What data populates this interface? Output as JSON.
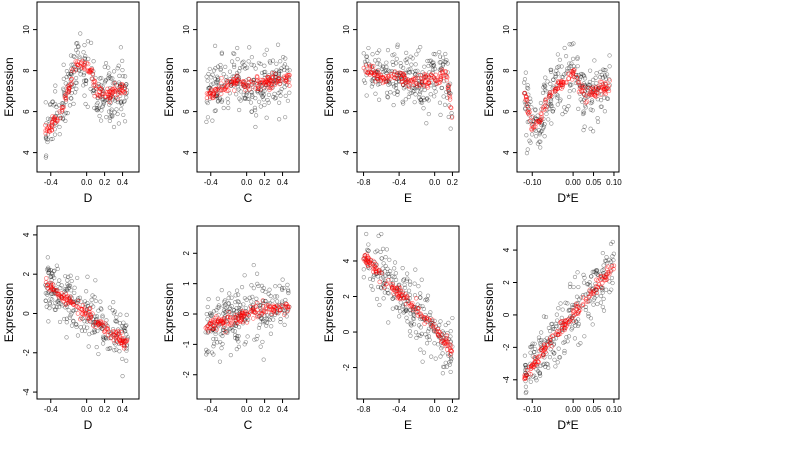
{
  "chart_data": [
    {
      "type": "scatter",
      "xlabel": "D",
      "ylabel": "Expression",
      "xticks": [
        "-0.4",
        "0.0",
        "0.2",
        "0.4"
      ],
      "xtick_values": [
        -0.4,
        0.0,
        0.2,
        0.4
      ],
      "yticks": [
        "4",
        "6",
        "8",
        "10"
      ],
      "ytick_values": [
        4,
        6,
        8,
        10
      ],
      "xlim": [
        -0.52,
        0.55
      ],
      "ylim": [
        3.2,
        11.2
      ],
      "trend": [
        [
          -0.46,
          4.9
        ],
        [
          -0.4,
          5.3
        ],
        [
          -0.3,
          5.9
        ],
        [
          -0.2,
          7.0
        ],
        [
          -0.15,
          8.1
        ],
        [
          -0.1,
          8.3
        ],
        [
          0.0,
          8.1
        ],
        [
          0.05,
          8.0
        ],
        [
          0.1,
          7.0
        ],
        [
          0.2,
          6.8
        ],
        [
          0.3,
          6.9
        ],
        [
          0.45,
          7.2
        ]
      ]
    },
    {
      "type": "scatter",
      "xlabel": "C",
      "ylabel": "Expression",
      "xticks": [
        "-0.4",
        "0.0",
        "0.2",
        "0.4"
      ],
      "xtick_values": [
        -0.4,
        0.0,
        0.2,
        0.4
      ],
      "yticks": [
        "4",
        "6",
        "8",
        "10"
      ],
      "ytick_values": [
        4,
        6,
        8,
        10
      ],
      "xlim": [
        -0.52,
        0.55
      ],
      "ylim": [
        3.2,
        11.2
      ],
      "trend": [
        [
          -0.45,
          6.8
        ],
        [
          -0.3,
          7.1
        ],
        [
          -0.1,
          7.4
        ],
        [
          0.1,
          7.3
        ],
        [
          0.3,
          7.5
        ],
        [
          0.48,
          7.6
        ]
      ]
    },
    {
      "type": "scatter",
      "xlabel": "E",
      "ylabel": "Expression",
      "xticks": [
        "-0.8",
        "-0.4",
        "0.0",
        "0.2"
      ],
      "xtick_values": [
        -0.8,
        -0.4,
        0.0,
        0.2
      ],
      "yticks": [
        "4",
        "6",
        "8",
        "10"
      ],
      "ytick_values": [
        4,
        6,
        8,
        10
      ],
      "xlim": [
        -0.84,
        0.24
      ],
      "ylim": [
        3.2,
        11.2
      ],
      "trend": [
        [
          -0.8,
          8.2
        ],
        [
          -0.6,
          7.6
        ],
        [
          -0.45,
          7.7
        ],
        [
          -0.2,
          7.4
        ],
        [
          0.05,
          7.6
        ],
        [
          0.1,
          8.0
        ],
        [
          0.15,
          7.5
        ],
        [
          0.2,
          5.5
        ]
      ]
    },
    {
      "type": "scatter",
      "xlabel": "D*E",
      "ylabel": "Expression",
      "xticks": [
        "-0.10",
        "0.00",
        "0.05",
        "0.10"
      ],
      "xtick_values": [
        -0.1,
        0.0,
        0.05,
        0.1
      ],
      "yticks": [
        "4",
        "6",
        "8",
        "10"
      ],
      "ytick_values": [
        4,
        6,
        8,
        10
      ],
      "xlim": [
        -0.13,
        0.105
      ],
      "ylim": [
        3.2,
        11.2
      ],
      "trend": [
        [
          -0.12,
          7.0
        ],
        [
          -0.1,
          5.2
        ],
        [
          -0.08,
          5.7
        ],
        [
          -0.05,
          7.0
        ],
        [
          -0.02,
          7.5
        ],
        [
          0.0,
          8.0
        ],
        [
          0.03,
          6.8
        ],
        [
          0.06,
          7.0
        ],
        [
          0.09,
          7.2
        ]
      ]
    },
    {
      "type": "scatter",
      "xlabel": "D",
      "ylabel": "Expression",
      "xticks": [
        "-0.4",
        "0.0",
        "0.2",
        "0.4"
      ],
      "xtick_values": [
        -0.4,
        0.0,
        0.2,
        0.4
      ],
      "yticks": [
        "-4",
        "-2",
        "0",
        "2",
        "4"
      ],
      "ytick_values": [
        -4,
        -2,
        0,
        2,
        4
      ],
      "xlim": [
        -0.52,
        0.55
      ],
      "ylim": [
        -4.2,
        4.3
      ],
      "trend": [
        [
          -0.46,
          1.6
        ],
        [
          -0.3,
          0.9
        ],
        [
          -0.1,
          0.3
        ],
        [
          0.0,
          0.0
        ],
        [
          0.2,
          -0.8
        ],
        [
          0.46,
          -1.6
        ]
      ]
    },
    {
      "type": "scatter",
      "xlabel": "C",
      "ylabel": "Expression",
      "xticks": [
        "-0.4",
        "0.0",
        "0.2",
        "0.4"
      ],
      "xtick_values": [
        -0.4,
        0.0,
        0.2,
        0.4
      ],
      "yticks": [
        "-2",
        "-1",
        "0",
        "1",
        "2"
      ],
      "ytick_values": [
        -2,
        -1,
        0,
        1,
        2
      ],
      "xlim": [
        -0.52,
        0.55
      ],
      "ylim": [
        -2.7,
        2.8
      ],
      "trend": [
        [
          -0.46,
          -0.4
        ],
        [
          -0.2,
          -0.2
        ],
        [
          0.0,
          0.0
        ],
        [
          0.2,
          0.15
        ],
        [
          0.48,
          0.3
        ]
      ]
    },
    {
      "type": "scatter",
      "xlabel": "E",
      "ylabel": "Expression",
      "xticks": [
        "-0.8",
        "-0.4",
        "0.0",
        "0.2"
      ],
      "xtick_values": [
        -0.8,
        -0.4,
        0.0,
        0.2
      ],
      "yticks": [
        "-2",
        "0",
        "2",
        "4"
      ],
      "ytick_values": [
        -2,
        0,
        2,
        4
      ],
      "xlim": [
        -0.84,
        0.24
      ],
      "ylim": [
        -3.6,
        5.8
      ],
      "trend": [
        [
          -0.8,
          4.2
        ],
        [
          -0.6,
          3.2
        ],
        [
          -0.45,
          2.4
        ],
        [
          -0.2,
          1.2
        ],
        [
          0.0,
          0.2
        ],
        [
          0.1,
          -0.5
        ],
        [
          0.2,
          -1.0
        ]
      ]
    },
    {
      "type": "scatter",
      "xlabel": "D*E",
      "ylabel": "Expression",
      "xticks": [
        "-0.10",
        "0.00",
        "0.05",
        "0.10"
      ],
      "xtick_values": [
        -0.1,
        0.0,
        0.05,
        0.1
      ],
      "yticks": [
        "-4",
        "-2",
        "0",
        "2",
        "4"
      ],
      "ytick_values": [
        -4,
        -2,
        0,
        2,
        4
      ],
      "xlim": [
        -0.13,
        0.105
      ],
      "ylim": [
        -5.0,
        5.3
      ],
      "trend": [
        [
          -0.12,
          -4.0
        ],
        [
          -0.09,
          -2.8
        ],
        [
          -0.05,
          -1.5
        ],
        [
          0.0,
          0.0
        ],
        [
          0.05,
          1.5
        ],
        [
          0.1,
          3.0
        ]
      ]
    }
  ]
}
